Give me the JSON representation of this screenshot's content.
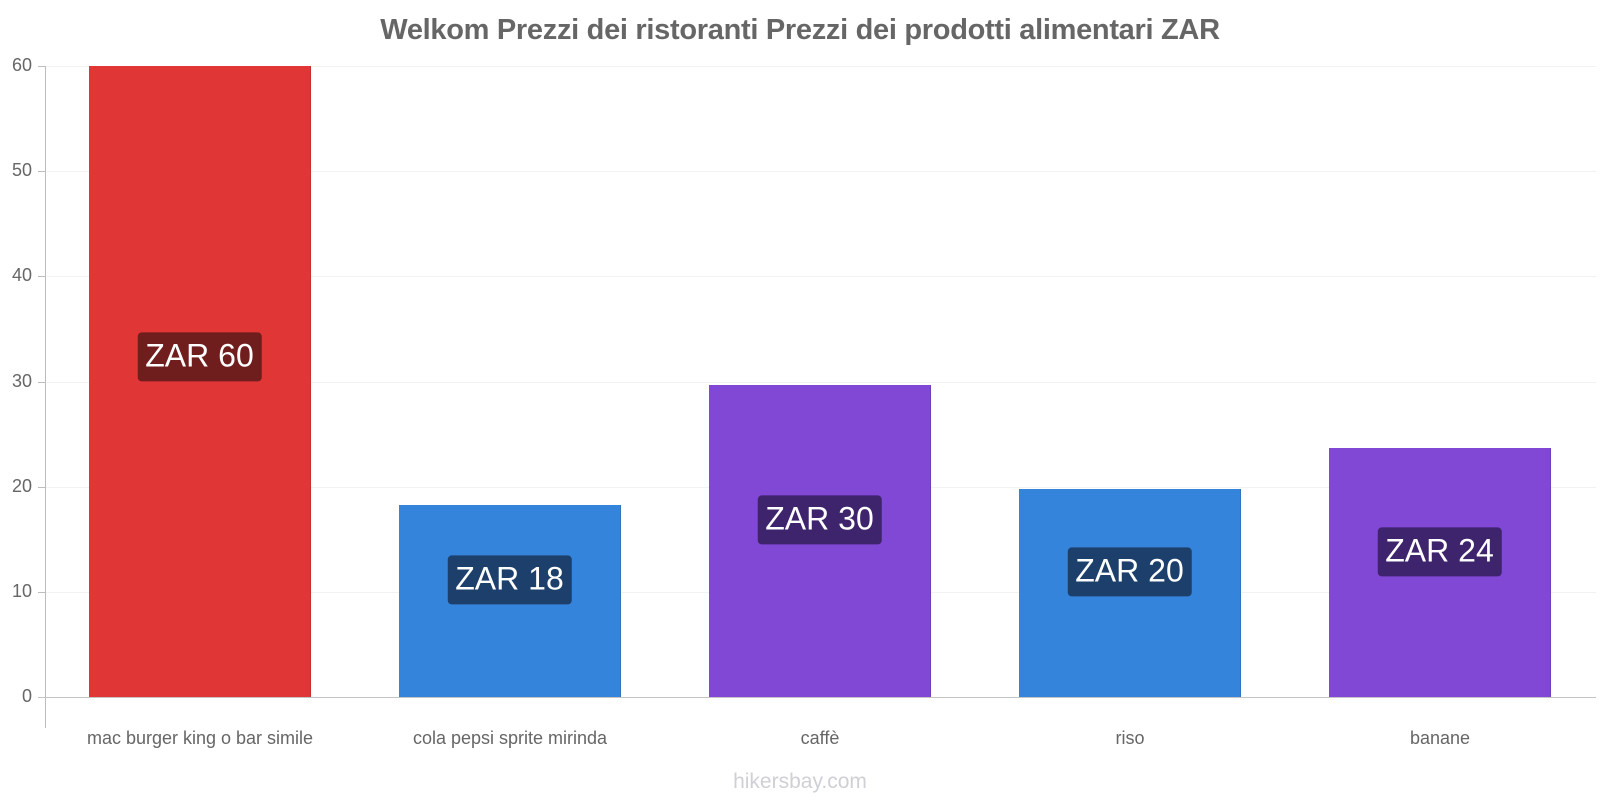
{
  "chart_data": {
    "type": "bar",
    "title": "Welkom Prezzi dei ristoranti Prezzi dei prodotti alimentari ZAR",
    "xlabel": "",
    "ylabel": "",
    "ylim": [
      0,
      60
    ],
    "yticks": [
      0,
      10,
      20,
      30,
      40,
      50,
      60
    ],
    "grid": true,
    "legend": null,
    "categories": [
      "mac burger king o bar simile",
      "cola pepsi sprite mirinda",
      "caffè",
      "riso",
      "banane"
    ],
    "values": [
      60,
      18.25,
      29.65,
      19.75,
      23.65
    ],
    "data_labels": [
      "ZAR 60",
      "ZAR 18",
      "ZAR 30",
      "ZAR 20",
      "ZAR 24"
    ],
    "bar_colors": [
      "#e03636",
      "#3584dc",
      "#8148d6",
      "#3584dc",
      "#8148d6"
    ],
    "label_colors": [
      "#701d1d",
      "#1c406b",
      "#3e236d",
      "#1c406b",
      "#3e236d"
    ],
    "watermark": "hikersbay.com"
  },
  "header": {
    "title": "Welkom Prezzi dei ristoranti Prezzi dei prodotti alimentari ZAR"
  },
  "axis": {
    "y_ticks": [
      "0",
      "10",
      "20",
      "30",
      "40",
      "50",
      "60"
    ]
  },
  "bars": [
    {
      "category": "mac burger king o bar simile",
      "label": "ZAR 60"
    },
    {
      "category": "cola pepsi sprite mirinda",
      "label": "ZAR 18"
    },
    {
      "category": "caffè",
      "label": "ZAR 30"
    },
    {
      "category": "riso",
      "label": "ZAR 20"
    },
    {
      "category": "banane",
      "label": "ZAR 24"
    }
  ],
  "footer": {
    "watermark": "hikersbay.com"
  }
}
